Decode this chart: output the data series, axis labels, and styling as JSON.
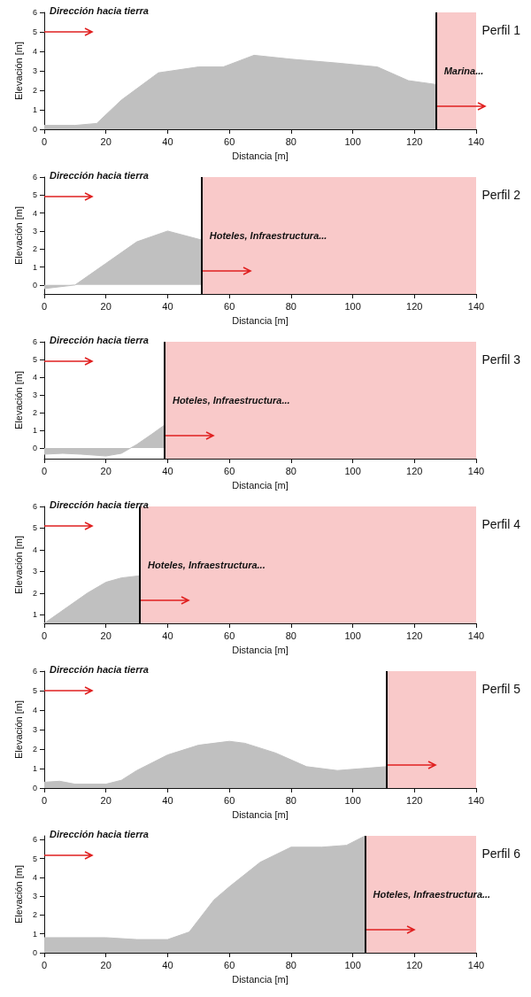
{
  "chart_data": [
    {
      "type": "area",
      "title": "Perfil 1",
      "xlabel": "Distancia [m]",
      "ylabel": "Elevación [m]",
      "annotations": [
        "Dirección hacia tierra"
      ],
      "x": [
        0,
        10,
        17,
        25,
        37,
        50,
        58,
        68,
        80,
        95,
        108,
        118,
        127
      ],
      "series": [
        {
          "color": "#c0c0c0",
          "values": [
            0.2,
            0.2,
            0.3,
            1.5,
            2.9,
            3.2,
            3.2,
            3.8,
            3.6,
            3.4,
            3.2,
            2.5,
            2.3
          ]
        }
      ],
      "xlim": [
        0,
        140
      ],
      "xticks": [
        0,
        20,
        40,
        60,
        80,
        100,
        120,
        140
      ],
      "ylim": [
        0,
        6
      ],
      "yticks": [
        0,
        1,
        2,
        3,
        4,
        5,
        6
      ],
      "bands": [
        {
          "axis": "x",
          "from": 127,
          "to": 140,
          "label": "Marina...",
          "color": "#f9c9c9"
        }
      ],
      "ref_lines": [
        {
          "axis": "x",
          "value": 127,
          "color": "#000000"
        }
      ]
    },
    {
      "type": "area",
      "title": "Perfil 2",
      "xlabel": "Distancia [m]",
      "ylabel": "Elevación [m]",
      "annotations": [
        "Dirección hacia tierra"
      ],
      "x": [
        0,
        10,
        20,
        30,
        40,
        51
      ],
      "series": [
        {
          "color": "#c0c0c0",
          "values": [
            -0.2,
            0.0,
            1.2,
            2.4,
            3.0,
            2.5
          ]
        }
      ],
      "xlim": [
        0,
        140
      ],
      "xticks": [
        0,
        20,
        40,
        60,
        80,
        100,
        120,
        140
      ],
      "ylim": [
        -0.5,
        6
      ],
      "yticks": [
        0,
        1,
        2,
        3,
        4,
        5,
        6
      ],
      "bands": [
        {
          "axis": "x",
          "from": 51,
          "to": 140,
          "label": "Hoteles, Infraestructura...",
          "color": "#f9c9c9"
        }
      ],
      "ref_lines": [
        {
          "axis": "x",
          "value": 51,
          "color": "#000000"
        }
      ]
    },
    {
      "type": "area",
      "title": "Perfil 3",
      "xlabel": "Distancia [m]",
      "ylabel": "Elevación [m]",
      "annotations": [
        "Dirección hacia tierra"
      ],
      "x": [
        0,
        6,
        12,
        20,
        25,
        30,
        35,
        39
      ],
      "series": [
        {
          "color": "#c0c0c0",
          "values": [
            -0.35,
            -0.3,
            -0.35,
            -0.45,
            -0.3,
            0.2,
            0.8,
            1.3
          ]
        }
      ],
      "xlim": [
        0,
        140
      ],
      "xticks": [
        0,
        20,
        40,
        60,
        80,
        100,
        120,
        140
      ],
      "ylim": [
        -0.6,
        6
      ],
      "yticks": [
        0,
        1,
        2,
        3,
        4,
        5,
        6
      ],
      "bands": [
        {
          "axis": "x",
          "from": 39,
          "to": 140,
          "label": "Hoteles, Infraestructura...",
          "color": "#f9c9c9"
        }
      ],
      "ref_lines": [
        {
          "axis": "x",
          "value": 39,
          "color": "#000000"
        }
      ]
    },
    {
      "type": "area",
      "title": "Perfil 4",
      "xlabel": "Distancia [m]",
      "ylabel": "Elevación [m]",
      "annotations": [
        "Dirección hacia tierra"
      ],
      "x": [
        0,
        5,
        14,
        20,
        25,
        31
      ],
      "series": [
        {
          "color": "#c0c0c0",
          "values": [
            0.6,
            1.1,
            2.0,
            2.5,
            2.7,
            2.8
          ]
        }
      ],
      "xlim": [
        0,
        140
      ],
      "xticks": [
        0,
        20,
        40,
        60,
        80,
        100,
        120,
        140
      ],
      "ylim": [
        0.6,
        6
      ],
      "yticks": [
        1,
        2,
        3,
        4,
        5,
        6
      ],
      "bands": [
        {
          "axis": "x",
          "from": 31,
          "to": 140,
          "label": "Hoteles, Infraestructura...",
          "color": "#f9c9c9"
        }
      ],
      "ref_lines": [
        {
          "axis": "x",
          "value": 31,
          "color": "#000000"
        }
      ]
    },
    {
      "type": "area",
      "title": "Perfil 5",
      "xlabel": "Distancia [m]",
      "ylabel": "Elevación [m]",
      "annotations": [
        "Dirección hacia tierra"
      ],
      "x": [
        0,
        5,
        10,
        20,
        25,
        30,
        40,
        50,
        60,
        65,
        75,
        85,
        95,
        103,
        111
      ],
      "series": [
        {
          "color": "#c0c0c0",
          "values": [
            0.3,
            0.35,
            0.2,
            0.2,
            0.4,
            0.9,
            1.7,
            2.2,
            2.4,
            2.3,
            1.8,
            1.1,
            0.9,
            1.0,
            1.1
          ]
        }
      ],
      "xlim": [
        0,
        140
      ],
      "xticks": [
        0,
        20,
        40,
        60,
        80,
        100,
        120,
        140
      ],
      "ylim": [
        0,
        6
      ],
      "yticks": [
        0,
        1,
        2,
        3,
        4,
        5,
        6
      ],
      "bands": [
        {
          "axis": "x",
          "from": 111,
          "to": 140,
          "color": "#f9c9c9"
        }
      ],
      "ref_lines": [
        {
          "axis": "x",
          "value": 111,
          "color": "#000000"
        }
      ]
    },
    {
      "type": "area",
      "title": "Perfil 6",
      "xlabel": "Distancia [m]",
      "ylabel": "Elevación [m]",
      "annotations": [
        "Dirección hacia tierra"
      ],
      "x": [
        0,
        20,
        30,
        40,
        47,
        55,
        60,
        70,
        80,
        90,
        98,
        104
      ],
      "series": [
        {
          "color": "#c0c0c0",
          "values": [
            0.8,
            0.8,
            0.7,
            0.7,
            1.1,
            2.8,
            3.5,
            4.8,
            5.6,
            5.6,
            5.7,
            6.2
          ]
        }
      ],
      "xlim": [
        0,
        140
      ],
      "xticks": [
        0,
        20,
        40,
        60,
        80,
        100,
        120,
        140
      ],
      "ylim": [
        0,
        6.2
      ],
      "yticks": [
        0,
        1,
        2,
        3,
        4,
        5,
        6
      ],
      "bands": [
        {
          "axis": "x",
          "from": 104,
          "to": 140,
          "label": "Hoteles, Infraestructura...",
          "color": "#f9c9c9"
        }
      ],
      "ref_lines": [
        {
          "axis": "x",
          "value": 104,
          "color": "#000000"
        }
      ]
    }
  ]
}
